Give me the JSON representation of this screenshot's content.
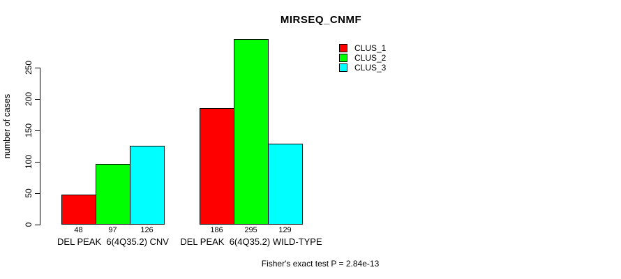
{
  "chart_data": {
    "type": "bar",
    "title": "MIRSEQ_CNMF",
    "xlabel": "",
    "ylabel": "number of cases",
    "categories": [
      "DEL PEAK  6(4Q35.2) CNV",
      "DEL PEAK  6(4Q35.2) WILD-TYPE"
    ],
    "series": [
      {
        "name": "CLUS_1",
        "color": "#ff0000",
        "values": [
          48,
          186
        ]
      },
      {
        "name": "CLUS_2",
        "color": "#00ff00",
        "values": [
          97,
          295
        ]
      },
      {
        "name": "CLUS_3",
        "color": "#00ffff",
        "values": [
          126,
          129
        ]
      }
    ],
    "value_labels": [
      [
        48,
        97,
        126
      ],
      [
        186,
        295,
        129
      ]
    ],
    "yticks": [
      0,
      50,
      100,
      150,
      200,
      250
    ],
    "ylim": [
      0,
      300
    ],
    "grid": false,
    "legend_position": "top-right",
    "annotation": "Fisher's exact test P = 2.84e-13"
  },
  "colors": {
    "background": "#ffffff",
    "axis": "#000000",
    "clus1": "#ff0000",
    "clus2": "#00ff00",
    "clus3": "#00ffff"
  }
}
